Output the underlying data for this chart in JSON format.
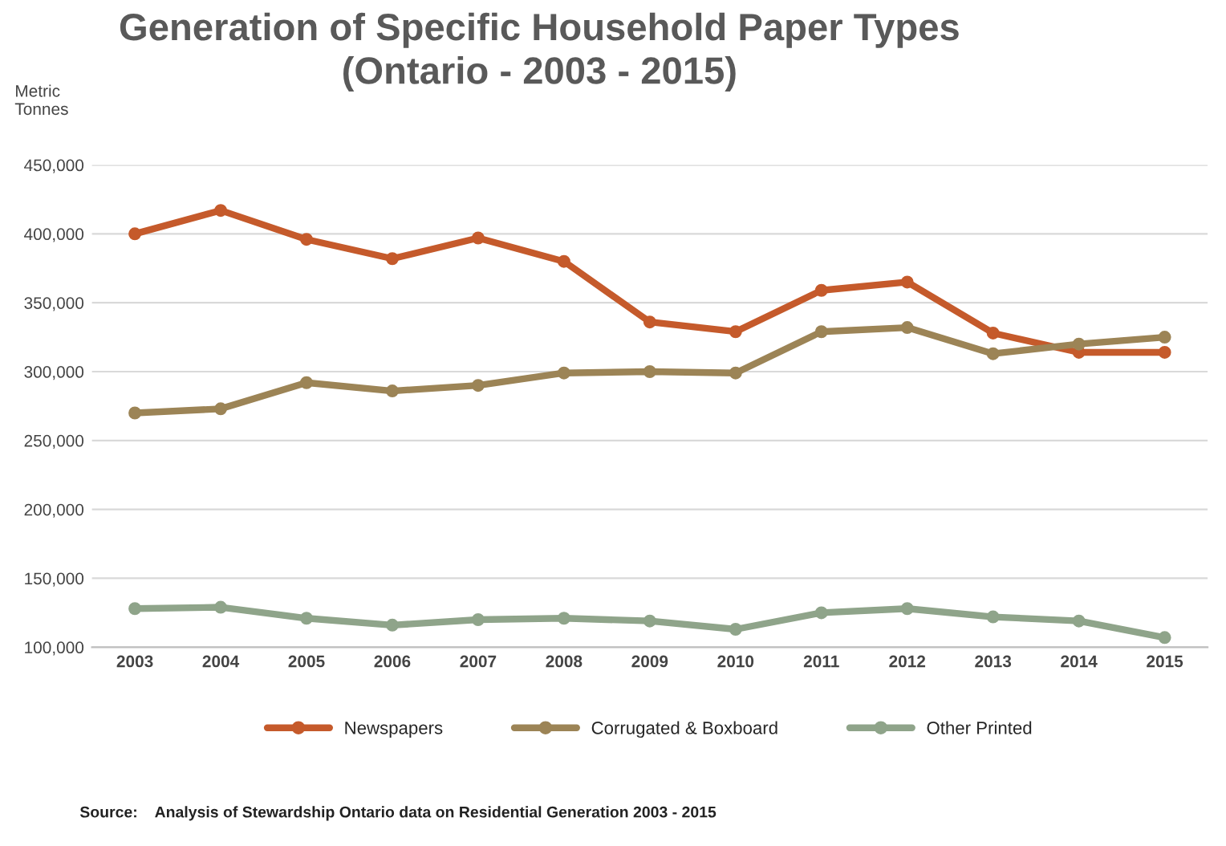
{
  "chart_data": {
    "type": "line",
    "title": "Generation of Specific Household Paper Types\n(Ontario - 2003 - 2015)",
    "ylabel": "Metric\nTonnes",
    "categories": [
      "2003",
      "2004",
      "2005",
      "2006",
      "2007",
      "2008",
      "2009",
      "2010",
      "2011",
      "2012",
      "2013",
      "2014",
      "2015"
    ],
    "series": [
      {
        "name": "Newspapers",
        "color": "#c55a2b",
        "values": [
          400000,
          417000,
          396000,
          382000,
          397000,
          380000,
          336000,
          329000,
          359000,
          365000,
          328000,
          314000,
          314000
        ]
      },
      {
        "name": "Corrugated & Boxboard",
        "color": "#9c8456",
        "values": [
          270000,
          273000,
          292000,
          286000,
          290000,
          299000,
          300000,
          299000,
          329000,
          332000,
          313000,
          320000,
          325000
        ]
      },
      {
        "name": "Other Printed",
        "color": "#8fa48a",
        "values": [
          128000,
          129000,
          121000,
          116000,
          120000,
          121000,
          119000,
          113000,
          125000,
          128000,
          122000,
          119000,
          107000
        ]
      }
    ],
    "ylim": [
      100000,
      450000
    ],
    "yticks": [
      {
        "value": 100000,
        "label": "100,000"
      },
      {
        "value": 150000,
        "label": "150,000"
      },
      {
        "value": 200000,
        "label": "200,000"
      },
      {
        "value": 250000,
        "label": "250,000"
      },
      {
        "value": 300000,
        "label": "300,000"
      },
      {
        "value": 350000,
        "label": "350,000"
      },
      {
        "value": 400000,
        "label": "400,000"
      },
      {
        "value": 450000,
        "label": "450,000"
      }
    ],
    "grid": "y",
    "legend": "bottom",
    "marker": "circle",
    "line_style": "solid",
    "annotations": [
      "Source:    Analysis of Stewardship Ontario data on Residential Generation 2003 - 2015"
    ]
  }
}
